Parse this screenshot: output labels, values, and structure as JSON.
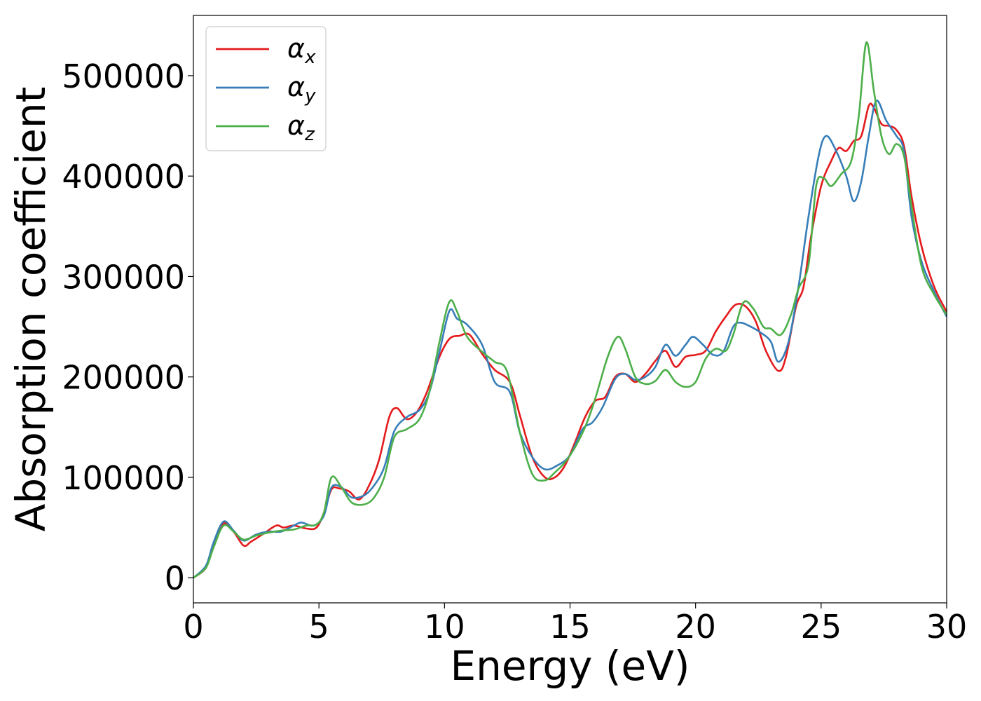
{
  "chart_data": {
    "type": "line",
    "title": "",
    "xlabel": "Energy (eV)",
    "ylabel": "Absorption coefficient",
    "xlim": [
      0,
      30
    ],
    "ylim": [
      -25000,
      560000
    ],
    "xticks": [
      0,
      5,
      10,
      15,
      20,
      25,
      30
    ],
    "xtick_labels": [
      "0",
      "5",
      "10",
      "15",
      "20",
      "25",
      "30"
    ],
    "yticks": [
      0,
      100000,
      200000,
      300000,
      400000,
      500000
    ],
    "ytick_labels": [
      "0",
      "100000",
      "200000",
      "300000",
      "400000",
      "500000"
    ],
    "grid": false,
    "legend_position": "top-left",
    "series": [
      {
        "name": "α",
        "name_sub": "x",
        "color": "#e41a1c",
        "points": [
          [
            0,
            0
          ],
          [
            0.5,
            10000
          ],
          [
            0.8,
            32000
          ],
          [
            1.2,
            54000
          ],
          [
            1.6,
            46000
          ],
          [
            2.0,
            32000
          ],
          [
            2.3,
            36000
          ],
          [
            2.8,
            44000
          ],
          [
            3.3,
            52000
          ],
          [
            3.6,
            50000
          ],
          [
            4.0,
            52000
          ],
          [
            4.5,
            49000
          ],
          [
            4.9,
            50000
          ],
          [
            5.2,
            65000
          ],
          [
            5.5,
            88000
          ],
          [
            5.8,
            89000
          ],
          [
            6.2,
            86000
          ],
          [
            6.6,
            78000
          ],
          [
            7.0,
            92000
          ],
          [
            7.4,
            118000
          ],
          [
            7.8,
            160000
          ],
          [
            8.1,
            169000
          ],
          [
            8.5,
            158000
          ],
          [
            8.9,
            165000
          ],
          [
            9.3,
            185000
          ],
          [
            9.8,
            220000
          ],
          [
            10.2,
            238000
          ],
          [
            10.6,
            241000
          ],
          [
            11.0,
            242000
          ],
          [
            11.5,
            223000
          ],
          [
            12.0,
            207000
          ],
          [
            12.6,
            195000
          ],
          [
            13.0,
            162000
          ],
          [
            13.5,
            120000
          ],
          [
            14.0,
            100000
          ],
          [
            14.4,
            100000
          ],
          [
            14.8,
            112000
          ],
          [
            15.2,
            135000
          ],
          [
            15.6,
            160000
          ],
          [
            16.0,
            176000
          ],
          [
            16.4,
            180000
          ],
          [
            16.8,
            200000
          ],
          [
            17.2,
            203000
          ],
          [
            17.6,
            195000
          ],
          [
            18.0,
            203000
          ],
          [
            18.4,
            216000
          ],
          [
            18.8,
            226000
          ],
          [
            19.2,
            210000
          ],
          [
            19.6,
            220000
          ],
          [
            20.0,
            222000
          ],
          [
            20.4,
            226000
          ],
          [
            20.8,
            245000
          ],
          [
            21.2,
            260000
          ],
          [
            21.6,
            272000
          ],
          [
            22.0,
            270000
          ],
          [
            22.4,
            255000
          ],
          [
            22.8,
            226000
          ],
          [
            23.3,
            206000
          ],
          [
            23.6,
            220000
          ],
          [
            24.0,
            270000
          ],
          [
            24.3,
            290000
          ],
          [
            24.6,
            340000
          ],
          [
            25.0,
            390000
          ],
          [
            25.4,
            415000
          ],
          [
            25.7,
            428000
          ],
          [
            26.0,
            425000
          ],
          [
            26.3,
            435000
          ],
          [
            26.6,
            440000
          ],
          [
            26.9,
            470000
          ],
          [
            27.1,
            468000
          ],
          [
            27.4,
            452000
          ],
          [
            27.7,
            450000
          ],
          [
            28.0,
            446000
          ],
          [
            28.3,
            430000
          ],
          [
            28.6,
            380000
          ],
          [
            29.0,
            330000
          ],
          [
            29.5,
            290000
          ],
          [
            30.0,
            265000
          ]
        ]
      },
      {
        "name": "α",
        "name_sub": "y",
        "color": "#377eb8",
        "points": [
          [
            0,
            0
          ],
          [
            0.5,
            12000
          ],
          [
            0.8,
            35000
          ],
          [
            1.2,
            56000
          ],
          [
            1.6,
            47000
          ],
          [
            2.0,
            37000
          ],
          [
            2.5,
            43000
          ],
          [
            3.0,
            46000
          ],
          [
            3.5,
            46000
          ],
          [
            4.0,
            52000
          ],
          [
            4.3,
            55000
          ],
          [
            4.8,
            52000
          ],
          [
            5.2,
            62000
          ],
          [
            5.5,
            90000
          ],
          [
            5.9,
            90000
          ],
          [
            6.3,
            80000
          ],
          [
            6.8,
            82000
          ],
          [
            7.2,
            92000
          ],
          [
            7.6,
            110000
          ],
          [
            8.0,
            146000
          ],
          [
            8.5,
            160000
          ],
          [
            9.0,
            167000
          ],
          [
            9.4,
            185000
          ],
          [
            9.8,
            225000
          ],
          [
            10.2,
            266000
          ],
          [
            10.5,
            258000
          ],
          [
            10.9,
            252000
          ],
          [
            11.5,
            232000
          ],
          [
            12.0,
            195000
          ],
          [
            12.6,
            185000
          ],
          [
            13.0,
            145000
          ],
          [
            13.5,
            120000
          ],
          [
            14.0,
            108000
          ],
          [
            14.5,
            112000
          ],
          [
            15.0,
            122000
          ],
          [
            15.5,
            148000
          ],
          [
            15.9,
            155000
          ],
          [
            16.3,
            170000
          ],
          [
            16.8,
            198000
          ],
          [
            17.2,
            203000
          ],
          [
            17.6,
            197000
          ],
          [
            18.0,
            200000
          ],
          [
            18.4,
            210000
          ],
          [
            18.8,
            232000
          ],
          [
            19.2,
            221000
          ],
          [
            19.6,
            232000
          ],
          [
            19.9,
            240000
          ],
          [
            20.3,
            232000
          ],
          [
            20.7,
            222000
          ],
          [
            21.1,
            225000
          ],
          [
            21.5,
            250000
          ],
          [
            21.8,
            254000
          ],
          [
            22.2,
            250000
          ],
          [
            22.6,
            244000
          ],
          [
            23.0,
            235000
          ],
          [
            23.3,
            215000
          ],
          [
            23.7,
            235000
          ],
          [
            24.1,
            290000
          ],
          [
            24.5,
            360000
          ],
          [
            24.9,
            420000
          ],
          [
            25.2,
            440000
          ],
          [
            25.6,
            425000
          ],
          [
            26.0,
            400000
          ],
          [
            26.3,
            375000
          ],
          [
            26.6,
            395000
          ],
          [
            26.9,
            440000
          ],
          [
            27.2,
            475000
          ],
          [
            27.6,
            455000
          ],
          [
            28.0,
            440000
          ],
          [
            28.3,
            425000
          ],
          [
            28.6,
            360000
          ],
          [
            29.0,
            315000
          ],
          [
            29.5,
            285000
          ],
          [
            30.0,
            260000
          ]
        ]
      },
      {
        "name": "α",
        "name_sub": "z",
        "color": "#4daf4a",
        "points": [
          [
            0,
            0
          ],
          [
            0.5,
            10000
          ],
          [
            0.8,
            30000
          ],
          [
            1.2,
            52000
          ],
          [
            1.6,
            46000
          ],
          [
            2.0,
            38000
          ],
          [
            2.5,
            42000
          ],
          [
            3.0,
            45000
          ],
          [
            3.5,
            47000
          ],
          [
            4.0,
            48000
          ],
          [
            4.5,
            52000
          ],
          [
            4.9,
            53000
          ],
          [
            5.2,
            65000
          ],
          [
            5.5,
            100000
          ],
          [
            5.9,
            90000
          ],
          [
            6.3,
            75000
          ],
          [
            6.8,
            73000
          ],
          [
            7.2,
            80000
          ],
          [
            7.6,
            100000
          ],
          [
            8.0,
            140000
          ],
          [
            8.5,
            148000
          ],
          [
            9.0,
            158000
          ],
          [
            9.4,
            185000
          ],
          [
            9.8,
            235000
          ],
          [
            10.2,
            275000
          ],
          [
            10.5,
            265000
          ],
          [
            10.9,
            240000
          ],
          [
            11.5,
            225000
          ],
          [
            12.0,
            215000
          ],
          [
            12.5,
            205000
          ],
          [
            13.0,
            145000
          ],
          [
            13.5,
            103000
          ],
          [
            14.0,
            97000
          ],
          [
            14.4,
            105000
          ],
          [
            14.8,
            115000
          ],
          [
            15.2,
            130000
          ],
          [
            15.6,
            150000
          ],
          [
            16.0,
            178000
          ],
          [
            16.5,
            220000
          ],
          [
            16.9,
            240000
          ],
          [
            17.2,
            228000
          ],
          [
            17.6,
            200000
          ],
          [
            18.0,
            193000
          ],
          [
            18.4,
            196000
          ],
          [
            18.8,
            207000
          ],
          [
            19.2,
            195000
          ],
          [
            19.6,
            190000
          ],
          [
            20.0,
            195000
          ],
          [
            20.4,
            218000
          ],
          [
            20.8,
            228000
          ],
          [
            21.2,
            226000
          ],
          [
            21.5,
            242000
          ],
          [
            21.9,
            274000
          ],
          [
            22.3,
            268000
          ],
          [
            22.7,
            250000
          ],
          [
            23.0,
            248000
          ],
          [
            23.4,
            242000
          ],
          [
            23.8,
            262000
          ],
          [
            24.1,
            288000
          ],
          [
            24.5,
            312000
          ],
          [
            24.8,
            390000
          ],
          [
            25.1,
            398000
          ],
          [
            25.4,
            390000
          ],
          [
            25.8,
            402000
          ],
          [
            26.2,
            415000
          ],
          [
            26.5,
            460000
          ],
          [
            26.8,
            533000
          ],
          [
            27.1,
            485000
          ],
          [
            27.4,
            440000
          ],
          [
            27.7,
            422000
          ],
          [
            28.0,
            432000
          ],
          [
            28.3,
            420000
          ],
          [
            28.6,
            370000
          ],
          [
            29.0,
            310000
          ],
          [
            29.5,
            282000
          ],
          [
            30.0,
            262000
          ]
        ]
      }
    ]
  }
}
